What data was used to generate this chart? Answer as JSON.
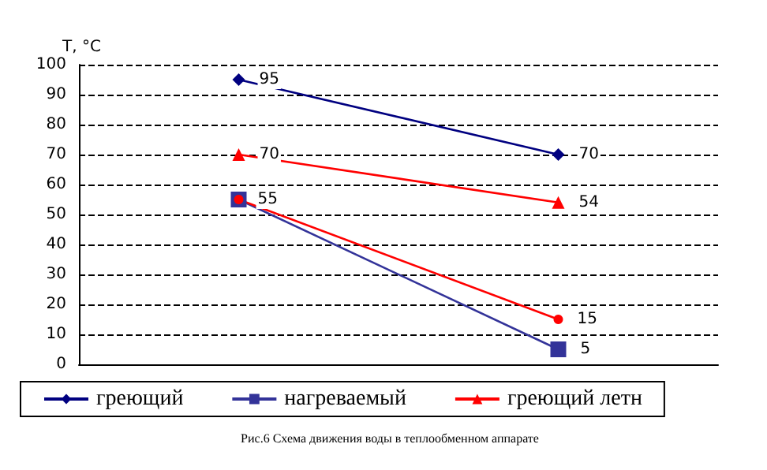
{
  "chart_data": {
    "type": "line",
    "ylabel": "T, °C",
    "categories": [
      null,
      null
    ],
    "series": [
      {
        "name": "греющий",
        "color": "#000080",
        "marker": "diamond",
        "values": [
          95,
          70
        ],
        "value_labels": [
          "95",
          "70"
        ]
      },
      {
        "name": "нагреваемый",
        "color": "#333399",
        "marker": "square",
        "values": [
          55,
          5
        ],
        "value_labels": [
          null,
          "5"
        ]
      },
      {
        "name": "греющий летн",
        "color": "#ff0000",
        "marker": "triangle",
        "values": [
          70,
          54
        ],
        "value_labels": [
          "70",
          "54"
        ]
      },
      {
        "color": "#ff0000",
        "marker": "circle",
        "values": [
          55,
          15
        ],
        "value_labels": [
          "55",
          "15"
        ]
      }
    ],
    "ylim": [
      0,
      100
    ],
    "yticks": [
      0,
      10,
      20,
      30,
      40,
      50,
      60,
      70,
      80,
      90,
      100
    ],
    "grid": "y",
    "legend": "bottom",
    "annotations": [
      "Рис.6 Схема движения воды в теплообменном аппарате"
    ]
  }
}
